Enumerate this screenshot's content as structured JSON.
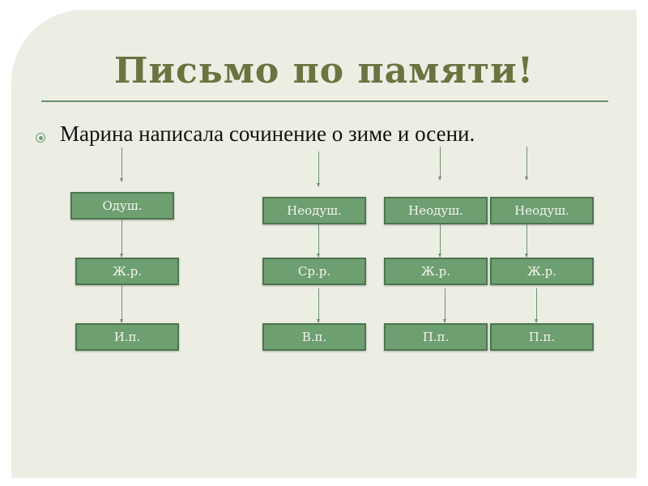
{
  "title": "Письмо по памяти!",
  "sentence": "Марина написала сочинение о зиме и осени.",
  "colors": {
    "title": "#6b7340",
    "box_fill": "#6e9f71",
    "box_border": "#4d7550",
    "background": "#eceee4"
  },
  "columns": [
    {
      "word": "Марина",
      "boxes": [
        "Одуш.",
        "Ж.р.",
        "И.п."
      ]
    },
    {
      "word": "сочинение",
      "boxes": [
        "Неодуш.",
        "Ср.р.",
        "В.п."
      ]
    },
    {
      "word": "зиме",
      "boxes": [
        "Неодуш.",
        "Ж.р.",
        "П.п."
      ]
    },
    {
      "word": "осени",
      "boxes": [
        "Неодуш.",
        "Ж.р.",
        "П.п."
      ]
    }
  ]
}
